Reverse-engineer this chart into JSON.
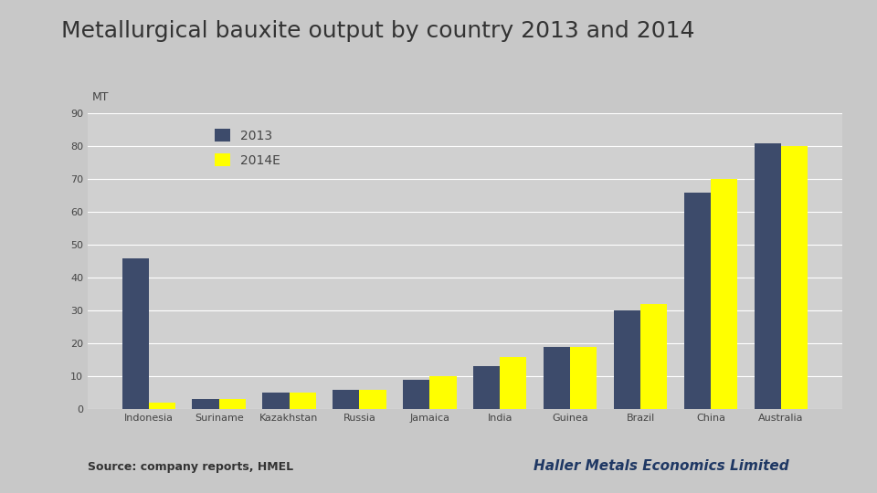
{
  "title": "Metallurgical bauxite output by country 2013 and 2014",
  "categories": [
    "Indonesia",
    "Suriname",
    "Kazakhstan",
    "Russia",
    "Jamaica",
    "India",
    "Guinea",
    "Brazil",
    "China",
    "Australia"
  ],
  "values_2013": [
    46,
    3,
    5,
    6,
    9,
    13,
    19,
    30,
    66,
    81
  ],
  "values_2014": [
    2,
    3,
    5,
    6,
    10,
    16,
    19,
    32,
    70,
    80
  ],
  "color_2013": "#3d4b6b",
  "color_2014": "#ffff00",
  "ylabel": "MT",
  "ylim": [
    0,
    90
  ],
  "yticks": [
    0,
    10,
    20,
    30,
    40,
    50,
    60,
    70,
    80,
    90
  ],
  "legend_2013": "2013",
  "legend_2014": "2014E",
  "source_text": "Source: company reports, HMEL",
  "brand_text": "Haller Metals Economics Limited",
  "background_color": "#c8c8c8",
  "plot_bg_color": "#d0d0d0",
  "grid_color": "#ffffff",
  "title_fontsize": 18,
  "tick_fontsize": 8,
  "legend_fontsize": 10,
  "source_fontsize": 9,
  "brand_fontsize": 11
}
